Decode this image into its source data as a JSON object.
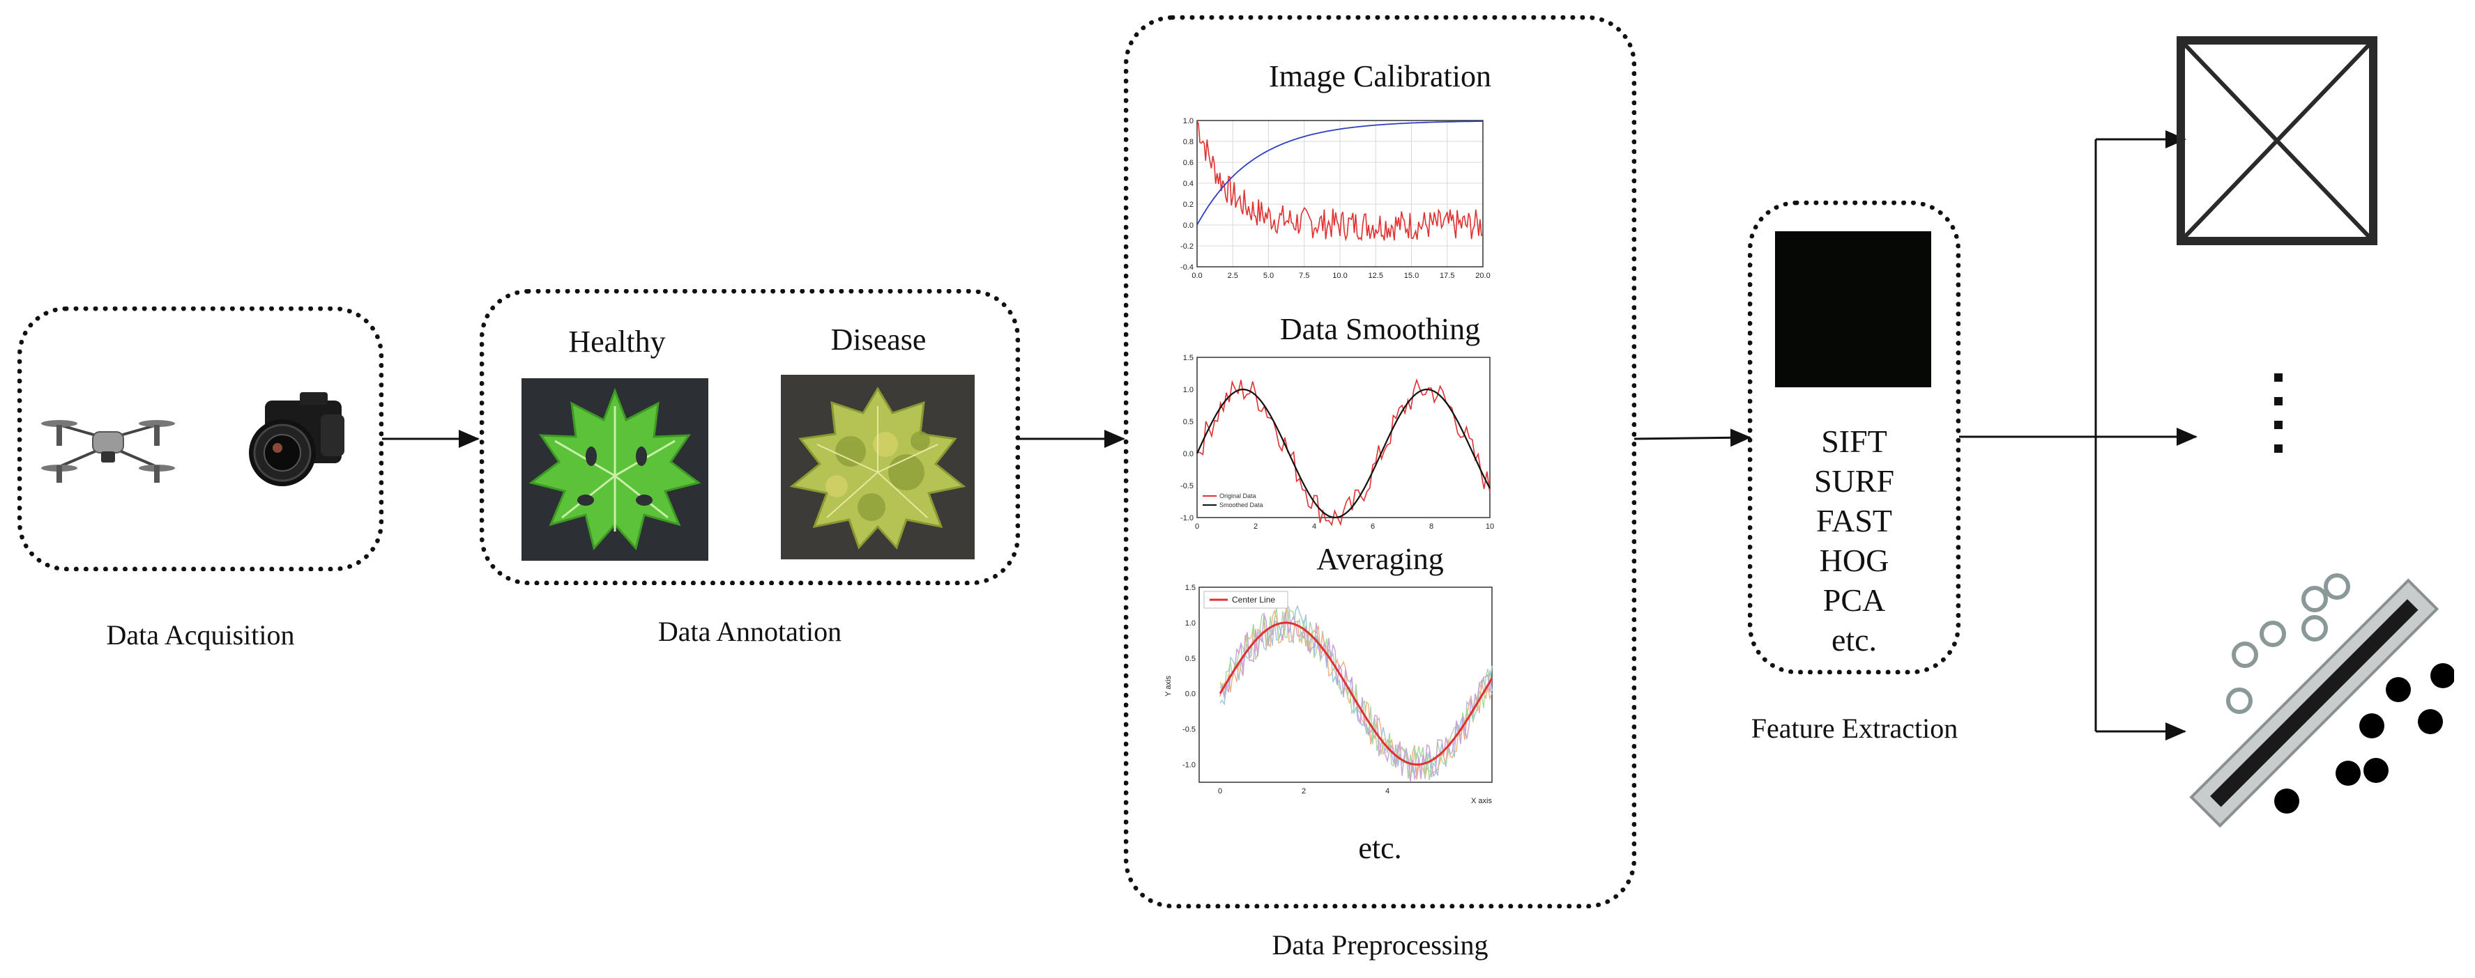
{
  "stages": {
    "acquisition": {
      "label": "Data Acquisition",
      "icons": [
        "drone-icon",
        "camera-icon"
      ]
    },
    "annotation": {
      "label": "Data Annotation",
      "healthy_label": "Healthy",
      "disease_label": "Disease"
    },
    "preprocessing": {
      "label": "Data Preprocessing",
      "calibration_title": "Image Calibration",
      "smoothing_title": "Data Smoothing",
      "averaging_title": "Averaging",
      "etc_label": "etc."
    },
    "feature_extraction": {
      "label": "Feature Extraction",
      "methods": [
        "SIFT",
        "SURF",
        "FAST",
        "HOG",
        "PCA",
        "etc."
      ]
    }
  },
  "outputs": [
    "crossed-box-icon",
    "vertical-ellipsis-icon",
    "svm-separator-icon"
  ],
  "colors": {
    "border": "#111111",
    "leaf_healthy": "#5cc23a",
    "leaf_disease": "#b5c254",
    "plot_red": "#e03030",
    "plot_blue": "#2e3fc2",
    "feature_image": "#060806",
    "separator_gray": "#c8cccc"
  },
  "chart_data": [
    {
      "type": "line",
      "xlim": [
        0,
        20
      ],
      "ylim": [
        -0.4,
        1.0
      ],
      "x_ticks": [
        "0.0",
        "2.5",
        "5.0",
        "7.5",
        "10.0",
        "12.5",
        "15.0",
        "17.5",
        "20.0"
      ],
      "y_ticks": [
        "1.0",
        "0.8",
        "0.6",
        "0.4",
        "0.2",
        "0.0",
        "-0.2",
        "-0.4"
      ],
      "series": [
        {
          "color": "#2e3fc2",
          "curve": "1 - exp(-x/4)"
        },
        {
          "color": "#e03030",
          "curve": "exp(-x/2) noisy, settles near 0"
        }
      ]
    },
    {
      "type": "line",
      "xlim": [
        0,
        10
      ],
      "ylim": [
        -1.0,
        1.5
      ],
      "x_ticks": [
        "0",
        "2",
        "4",
        "6",
        "8",
        "10"
      ],
      "y_ticks": [
        "1.5",
        "1.0",
        "0.5",
        "0.0",
        "-0.5",
        "-1.0"
      ],
      "legend": [
        "Original Data",
        "Smoothed Data"
      ],
      "series": [
        {
          "name": "Original Data",
          "color": "#e03030",
          "curve": "sin(x) + noise"
        },
        {
          "name": "Smoothed Data",
          "color": "#111111",
          "curve": "sin(x)"
        }
      ]
    },
    {
      "type": "line",
      "xlim": [
        -0.5,
        6.5
      ],
      "ylim": [
        -1.25,
        1.5
      ],
      "x_ticks": [
        "0",
        "2",
        "4"
      ],
      "y_ticks": [
        "1.5",
        "1.0",
        "0.5",
        "0.0",
        "-0.5",
        "-1.0"
      ],
      "xlabel": "X axis",
      "ylabel": "Y axis",
      "legend": [
        "Center Line"
      ],
      "series": [
        {
          "name": "Center Line",
          "color": "#e03030",
          "curve": "sin(x)"
        },
        {
          "color": "#9fc4e0",
          "curve": "sin(x) + noise"
        },
        {
          "color": "#f0b080",
          "curve": "sin(x) + noise"
        },
        {
          "color": "#a8d8a0",
          "curve": "sin(x) + noise"
        },
        {
          "color": "#c8a0d8",
          "curve": "sin(x) + noise"
        }
      ]
    }
  ]
}
